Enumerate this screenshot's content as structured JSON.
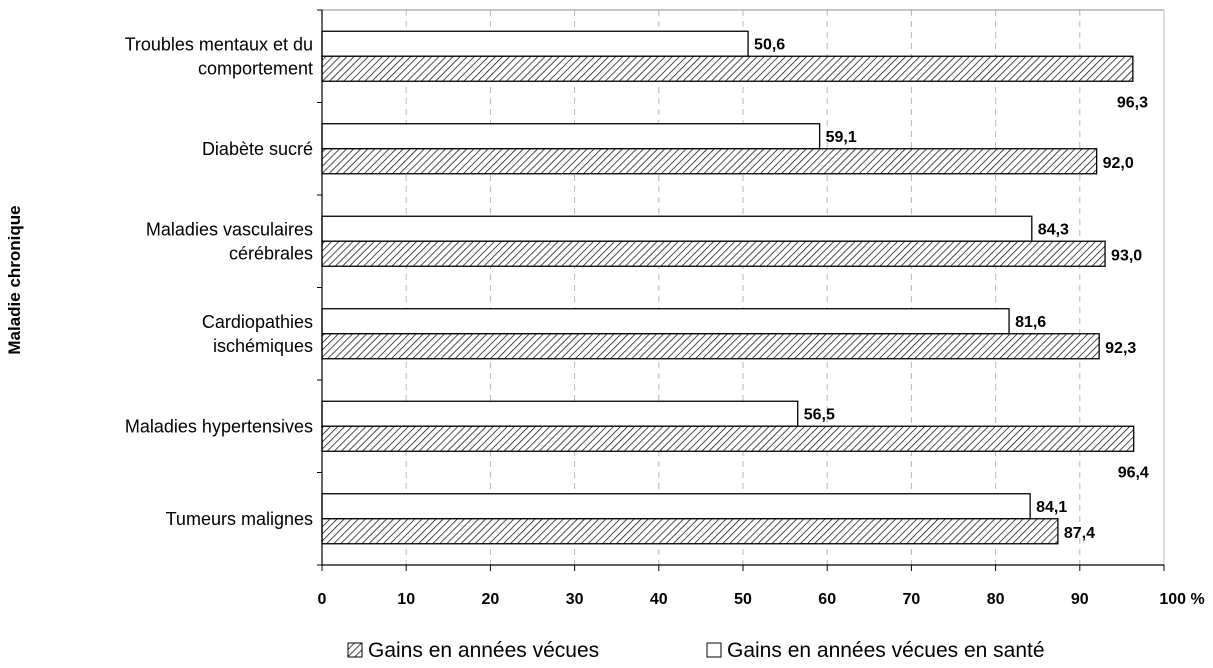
{
  "chart_data": {
    "type": "bar",
    "orientation": "horizontal",
    "ylabel": "Maladie chronique",
    "xlabel": "",
    "xlim": [
      0,
      100
    ],
    "x_ticks": [
      "0",
      "10",
      "20",
      "30",
      "40",
      "50",
      "60",
      "70",
      "80",
      "90",
      "100 %"
    ],
    "categories": [
      [
        "Troubles mentaux et du",
        "comportement"
      ],
      [
        "Diabète sucré"
      ],
      [
        "Maladies vasculaires",
        "cérébrales"
      ],
      [
        "Cardiopathies",
        "ischémiques"
      ],
      [
        "Maladies hypertensives"
      ],
      [
        "Tumeurs malignes"
      ]
    ],
    "series": [
      {
        "name": "Gains en années vécues en santé",
        "fill": "#ffffff",
        "pattern": "none",
        "values": [
          50.6,
          59.1,
          84.3,
          81.6,
          56.5,
          84.1
        ],
        "labels": [
          "50,6",
          "59,1",
          "84,3",
          "81,6",
          "56,5",
          "84,1"
        ]
      },
      {
        "name": "Gains en années vécues",
        "fill": "#ffffff",
        "pattern": "diagonal-hatch",
        "values": [
          96.3,
          92.0,
          93.0,
          92.3,
          96.4,
          87.4
        ],
        "labels": [
          "96,3",
          "92,0",
          "93,0",
          "92,3",
          "96,4",
          "87,4"
        ]
      }
    ],
    "grid": true,
    "grid_style": "dashed-vertical",
    "legend_position": "bottom",
    "legend_order": [
      "Gains en années vécues",
      "Gains en années vécues en santé"
    ]
  }
}
